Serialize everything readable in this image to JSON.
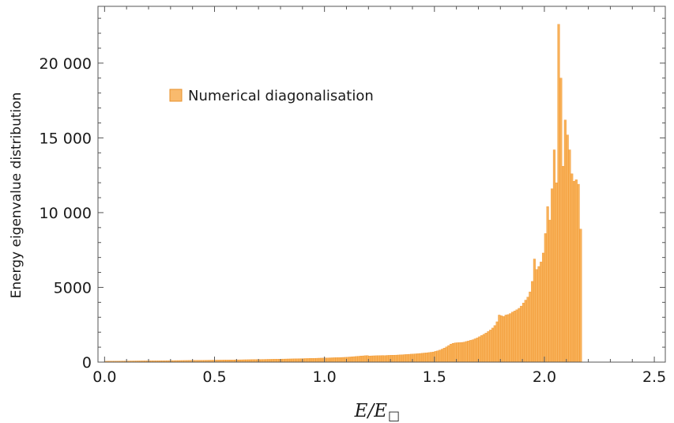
{
  "chart_data": {
    "type": "bar",
    "xlabel": "E/E",
    "xlabel_subscript": "□",
    "ylabel": "Energy eigenvalue distribution",
    "xlim": [
      -0.03,
      2.55
    ],
    "ylim": [
      0,
      23800
    ],
    "x_ticks": [
      {
        "value": 0.0,
        "label": "0.0"
      },
      {
        "value": 0.5,
        "label": "0.5"
      },
      {
        "value": 1.0,
        "label": "1.0"
      },
      {
        "value": 1.5,
        "label": "1.5"
      },
      {
        "value": 2.0,
        "label": "2.0"
      },
      {
        "value": 2.5,
        "label": "2.5"
      }
    ],
    "y_ticks": [
      {
        "value": 0,
        "label": "0"
      },
      {
        "value": 5000,
        "label": "5000"
      },
      {
        "value": 10000,
        "label": "10 000"
      },
      {
        "value": 15000,
        "label": "15 000"
      },
      {
        "value": 20000,
        "label": "20 000"
      }
    ],
    "bin_width": 0.01,
    "bin_start": 0.0,
    "series": [
      {
        "name": "Numerical diagonalisation",
        "color": "#f7a33c",
        "counts": [
          60,
          62,
          64,
          66,
          68,
          70,
          71,
          72,
          74,
          75,
          76,
          77,
          79,
          80,
          81,
          82,
          83,
          85,
          86,
          87,
          88,
          90,
          91,
          92,
          93,
          95,
          96,
          98,
          99,
          100,
          102,
          103,
          105,
          106,
          108,
          109,
          111,
          112,
          114,
          115,
          117,
          118,
          120,
          122,
          123,
          125,
          127,
          128,
          130,
          132,
          133,
          135,
          137,
          139,
          141,
          143,
          145,
          147,
          149,
          151,
          153,
          155,
          157,
          160,
          162,
          164,
          166,
          169,
          171,
          174,
          176,
          179,
          181,
          184,
          187,
          189,
          192,
          195,
          198,
          201,
          204,
          207,
          210,
          213,
          216,
          219,
          223,
          226,
          230,
          233,
          237,
          241,
          244,
          248,
          252,
          256,
          260,
          265,
          269,
          273,
          278,
          282,
          287,
          292,
          297,
          302,
          307,
          312,
          317,
          323,
          333,
          344,
          356,
          368,
          380,
          393,
          405,
          418,
          430,
          440,
          410,
          420,
          425,
          430,
          435,
          440,
          445,
          440,
          450,
          455,
          460,
          465,
          470,
          478,
          485,
          495,
          505,
          515,
          525,
          535,
          545,
          555,
          568,
          580,
          595,
          610,
          625,
          640,
          660,
          680,
          720,
          760,
          810,
          870,
          940,
          1020,
          1110,
          1200,
          1260,
          1290,
          1300,
          1310,
          1320,
          1340,
          1380,
          1420,
          1460,
          1500,
          1560,
          1620,
          1700,
          1780,
          1860,
          1950,
          2050,
          2150,
          2280,
          2450,
          2700,
          3150,
          3100,
          3050,
          3150,
          3180,
          3250,
          3350,
          3420,
          3500,
          3600,
          3750,
          3950,
          4150,
          4350,
          4700,
          5400,
          6900,
          6200,
          6400,
          6700,
          7300,
          8600,
          10400,
          9500,
          11600,
          14200,
          12000,
          22600,
          19000,
          13100,
          16200,
          15200,
          14200,
          12600,
          12100,
          12200,
          11900,
          8900
        ]
      }
    ],
    "legend": {
      "position": "top-left",
      "entries": [
        {
          "label": "Numerical diagonalisation",
          "color": "#f7a33c"
        }
      ]
    },
    "grid": false
  }
}
